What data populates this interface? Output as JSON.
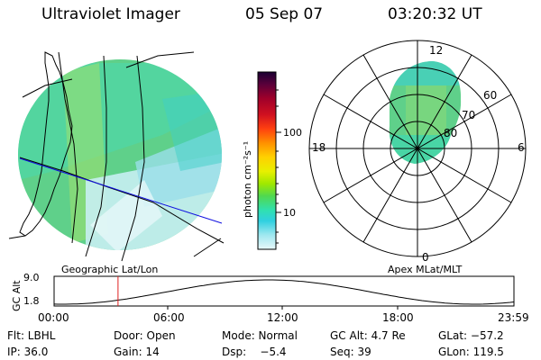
{
  "header": {
    "title": "Ultraviolet Imager",
    "date": "05 Sep 07",
    "time": "03:20:32 UT"
  },
  "left_panel": {
    "caption": "Geographic Lat/Lon"
  },
  "right_panel": {
    "caption": "Apex MLat/MLT",
    "mlt_labels": [
      "12",
      "18",
      "6",
      "0"
    ],
    "lat_labels": [
      "60",
      "70",
      "80"
    ]
  },
  "colorbar": {
    "label": "photon cm⁻²s⁻¹",
    "ticks": [
      "100",
      "10"
    ],
    "colors": [
      "#1a0033",
      "#5a003a",
      "#a0002a",
      "#d01020",
      "#ff4010",
      "#ff9000",
      "#ffd000",
      "#e8f000",
      "#a0e800",
      "#50d850",
      "#30e0b0",
      "#30d0e0",
      "#a0e8f0",
      "#e8f8fa"
    ]
  },
  "altitude_plot": {
    "ylabel": "GC Alt",
    "yticks": [
      "9.0",
      "1.8"
    ],
    "xticks": [
      "00:00",
      "06:00",
      "12:00",
      "18:00",
      "23:59"
    ],
    "current_time_fraction": 0.139
  },
  "info": {
    "row1": [
      "Flt: LBHL",
      "Door: Open",
      "Mode: Normal",
      "GC Alt: 4.7 Re",
      "GLat: −57.2"
    ],
    "row2": [
      "IP: 36.0",
      "Gain: 14",
      "Dsp:    −5.4",
      "Seq: 39",
      "GLon: 119.5"
    ]
  }
}
